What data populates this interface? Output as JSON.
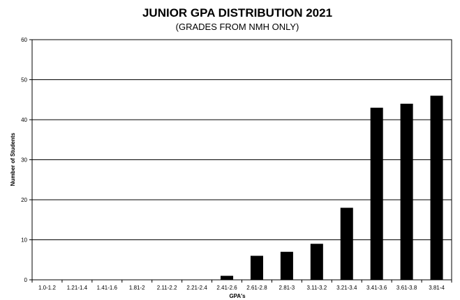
{
  "chart_data": {
    "type": "bar",
    "title": "JUNIOR GPA DISTRIBUTION 2021",
    "subtitle": "(GRADES FROM NMH ONLY)",
    "xlabel": "GPA's",
    "ylabel": "Number of Students",
    "categories": [
      "1.0-1.2",
      "1.21-1.4",
      "1.41-1.6",
      "1.81-2",
      "2.11-2.2",
      "2.21-2.4",
      "2.41-2.6",
      "2.61-2.8",
      "2.81-3",
      "3.11-3.2",
      "3.21-3.4",
      "3.41-3.6",
      "3.61-3.8",
      "3.81-4"
    ],
    "values": [
      0,
      0,
      0,
      0,
      0,
      0,
      1,
      6,
      7,
      9,
      18,
      43,
      44,
      46
    ],
    "ylim": [
      0,
      60
    ],
    "yticks": [
      0,
      10,
      20,
      30,
      40,
      50,
      60
    ],
    "grid": true,
    "bar_color": "#000000"
  }
}
